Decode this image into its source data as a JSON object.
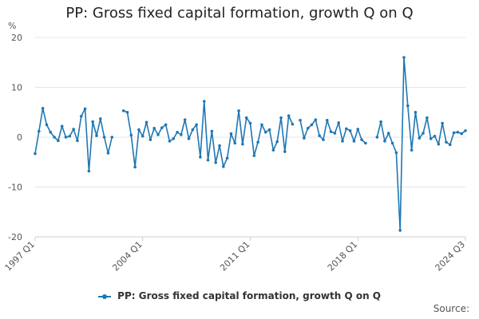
{
  "chart_data": {
    "type": "line",
    "title": "PP: Gross fixed capital formation, growth Q on Q",
    "ylabel": "%",
    "xlabel": "",
    "ylim": [
      -20,
      20
    ],
    "yticks": [
      20,
      10,
      0,
      -10,
      -20
    ],
    "xticks": [
      "1997 Q1",
      "2004 Q1",
      "2011 Q1",
      "2018 Q1",
      "2024 Q3"
    ],
    "legend": "PP: Gross fixed capital formation, growth Q on Q",
    "legend_position": "bottom",
    "source_label": "Source:",
    "color": "#1f77b4",
    "series": [
      {
        "name": "PP: Gross fixed capital formation, growth Q on Q",
        "start": "1997 Q1",
        "values": [
          -3.3,
          1.2,
          5.8,
          2.5,
          1.0,
          0.0,
          -0.7,
          2.2,
          0.0,
          0.2,
          1.6,
          -0.7,
          4.2,
          5.7,
          -6.8,
          3.1,
          0.3,
          3.7,
          0.0,
          -3.2,
          0.0,
          null,
          null,
          5.3,
          5.0,
          0.4,
          -6.0,
          1.5,
          0.2,
          3.0,
          -0.5,
          1.8,
          0.5,
          1.9,
          2.5,
          -0.8,
          -0.3,
          1.0,
          0.5,
          3.5,
          -0.3,
          1.5,
          2.5,
          -4.0,
          7.2,
          -4.6,
          1.2,
          -5.1,
          -1.7,
          -5.9,
          -4.2,
          0.7,
          -1.2,
          5.3,
          -1.4,
          3.9,
          2.8,
          -3.7,
          -1.0,
          2.5,
          1.0,
          1.5,
          -2.6,
          -0.9,
          3.9,
          -2.9,
          4.3,
          2.6,
          null,
          3.4,
          -0.2,
          1.8,
          2.5,
          3.5,
          0.3,
          -0.5,
          3.4,
          1.1,
          0.8,
          2.9,
          -0.8,
          1.7,
          1.3,
          -0.8,
          1.6,
          -0.5,
          -1.2,
          null,
          null,
          0.0,
          3.1,
          -0.8,
          0.8,
          -1.2,
          -3.1,
          -18.7,
          16.0,
          6.3,
          -2.6,
          5.0,
          -0.2,
          0.8,
          3.9,
          -0.3,
          0.2,
          -1.4,
          2.8,
          -1.0,
          -1.5,
          0.9,
          1.0,
          0.7,
          1.3
        ]
      }
    ]
  }
}
